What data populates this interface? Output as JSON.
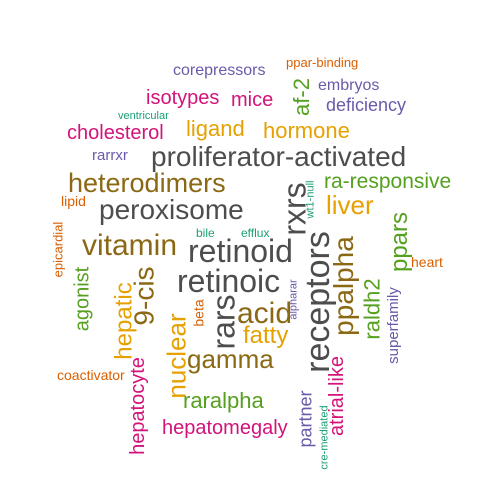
{
  "palette": {
    "gray": "#4d4d4d",
    "olive": "#8b6914",
    "green": "#55a01f",
    "purple": "#6b5aa8",
    "magenta": "#d3137a",
    "gold": "#e6a100",
    "orange": "#d95f02",
    "teal": "#1b9e77"
  },
  "words": [
    {
      "text": "ppar-binding"
    },
    {
      "text": "corepressors"
    },
    {
      "text": "embryos"
    },
    {
      "text": "af-2"
    },
    {
      "text": "isotypes"
    },
    {
      "text": "mice"
    },
    {
      "text": "deficiency"
    },
    {
      "text": "ventricular"
    },
    {
      "text": "ligand"
    },
    {
      "text": "hormone"
    },
    {
      "text": "cholesterol"
    },
    {
      "text": "proliferator-activated"
    },
    {
      "text": "rarrxr"
    },
    {
      "text": "heterodimers"
    },
    {
      "text": "wt1-null"
    },
    {
      "text": "ra-responsive"
    },
    {
      "text": "lipid"
    },
    {
      "text": "peroxisome"
    },
    {
      "text": "rxrs"
    },
    {
      "text": "liver"
    },
    {
      "text": "epicardial"
    },
    {
      "text": "bile"
    },
    {
      "text": "efflux"
    },
    {
      "text": "vitamin"
    },
    {
      "text": "retinoid"
    },
    {
      "text": "ppars"
    },
    {
      "text": "retinoic"
    },
    {
      "text": "receptors"
    },
    {
      "text": "ppalpha"
    },
    {
      "text": "heart"
    },
    {
      "text": "agonist"
    },
    {
      "text": "9-cis"
    },
    {
      "text": "alpharar"
    },
    {
      "text": "raldh2"
    },
    {
      "text": "hepatic"
    },
    {
      "text": "beta"
    },
    {
      "text": "rars"
    },
    {
      "text": "acid"
    },
    {
      "text": "superfamily"
    },
    {
      "text": "fatty"
    },
    {
      "text": "nuclear"
    },
    {
      "text": "gamma"
    },
    {
      "text": "hepatocyte"
    },
    {
      "text": "coactivator"
    },
    {
      "text": "atrial-like"
    },
    {
      "text": "raralpha"
    },
    {
      "text": "partner"
    },
    {
      "text": "cre-mediated"
    },
    {
      "text": "hepatomegaly"
    }
  ]
}
